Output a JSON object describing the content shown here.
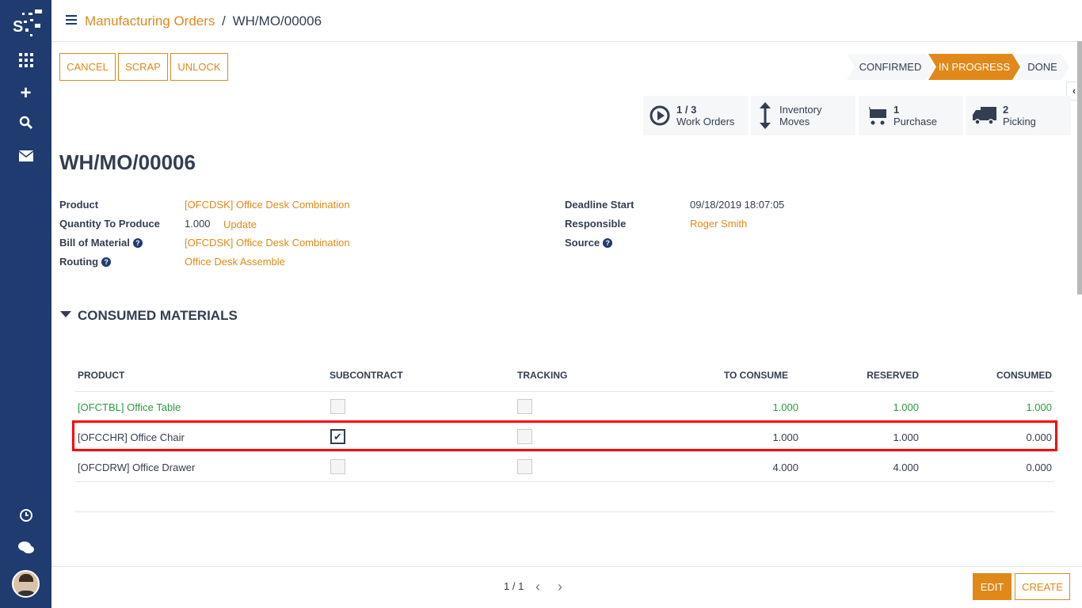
{
  "sidebar": {
    "icons": [
      "logo",
      "apps-icon",
      "plus-icon",
      "search-icon",
      "mail-icon",
      "clock-icon",
      "chat-icon",
      "avatar"
    ]
  },
  "header": {
    "breadcrumb_parent": "Manufacturing Orders",
    "separator": "/",
    "breadcrumb_current": "WH/MO/00006"
  },
  "actions": {
    "cancel": "CANCEL",
    "scrap": "SCRAP",
    "unlock": "UNLOCK"
  },
  "statusbar": {
    "stages": [
      "CONFIRMED",
      "IN PROGRESS",
      "DONE"
    ],
    "active": "IN PROGRESS"
  },
  "smart_buttons": [
    {
      "count": "1 / 3",
      "label": "Work Orders",
      "icon": "play-circle-icon"
    },
    {
      "count": "Inventory",
      "label": "Moves",
      "icon": "arrows-vertical-icon"
    },
    {
      "count": "1",
      "label": "Purchase",
      "icon": "cart-icon"
    },
    {
      "count": "2",
      "label": "Picking",
      "icon": "truck-icon"
    }
  ],
  "form": {
    "title": "WH/MO/00006",
    "product_label": "Product",
    "product": "[OFCDSK] Office Desk Combination",
    "qty_label": "Quantity To Produce",
    "qty": "1.000",
    "update": "Update",
    "bom_label": "Bill of Material",
    "bom": "[OFCDSK] Office Desk Combination",
    "routing_label": "Routing",
    "routing": "Office Desk Assemble",
    "deadline_label": "Deadline Start",
    "deadline": "09/18/2019 18:07:05",
    "responsible_label": "Responsible",
    "responsible": "Roger Smith",
    "source_label": "Source",
    "help": "?"
  },
  "section": {
    "title": "CONSUMED MATERIALS"
  },
  "table": {
    "headers": [
      "PRODUCT",
      "SUBCONTRACT",
      "TRACKING",
      "TO CONSUME",
      "RESERVED",
      "CONSUMED"
    ],
    "rows": [
      {
        "product": "[OFCTBL] Office Table",
        "subcontract": false,
        "tracking": false,
        "to_consume": "1.000",
        "reserved": "1.000",
        "consumed": "1.000",
        "status": "done"
      },
      {
        "product": "[OFCCHR] Office Chair",
        "subcontract": true,
        "tracking": false,
        "to_consume": "1.000",
        "reserved": "1.000",
        "consumed": "0.000",
        "highlighted": true
      },
      {
        "product": "[OFCDRW] Office Drawer",
        "subcontract": false,
        "tracking": false,
        "to_consume": "4.000",
        "reserved": "4.000",
        "consumed": "0.000"
      }
    ]
  },
  "footer": {
    "pager": "1 / 1",
    "edit": "EDIT",
    "create": "CREATE"
  },
  "colors": {
    "accent": "#e0891a",
    "sidebar": "#1f3b70",
    "done_row": "#2c9a3c",
    "highlight": "#ff0000"
  }
}
